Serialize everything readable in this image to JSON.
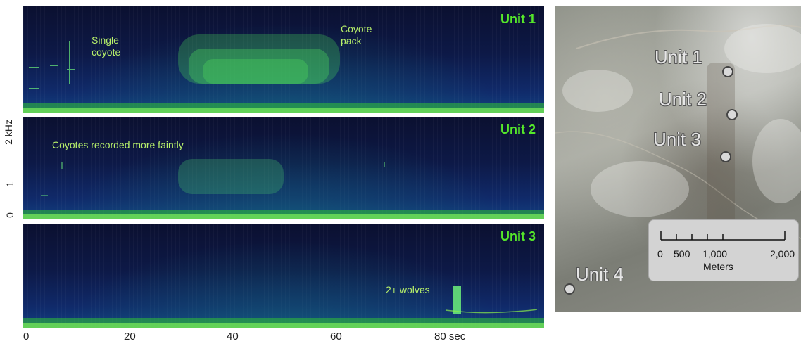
{
  "panels": [
    {
      "unit": "Unit 1",
      "annotations": [
        {
          "text": "Single\ncoyote"
        },
        {
          "text": "Coyote\npack"
        }
      ]
    },
    {
      "unit": "Unit 2",
      "annotations": [
        {
          "text": "Coyotes recorded more faintly"
        }
      ]
    },
    {
      "unit": "Unit 3",
      "annotations": [
        {
          "text": "2+ wolves"
        }
      ]
    }
  ],
  "y_axis": {
    "unit_label": "2 kHz",
    "ticks": [
      "1",
      "0"
    ]
  },
  "x_axis": {
    "ticks": [
      "0",
      "20",
      "40",
      "60",
      "80 sec"
    ]
  },
  "map": {
    "units": [
      "Unit 1",
      "Unit 2",
      "Unit 3",
      "Unit 4"
    ],
    "scalebar": {
      "ticks": [
        "0",
        "500",
        "1,000",
        "2,000"
      ],
      "unit": "Meters"
    }
  },
  "colors": {
    "label_green": "#55e82a",
    "annotation_green": "#b7f06a",
    "spectrogram_bg": "#0d1947",
    "signal_highlight": "#8cf04a"
  }
}
